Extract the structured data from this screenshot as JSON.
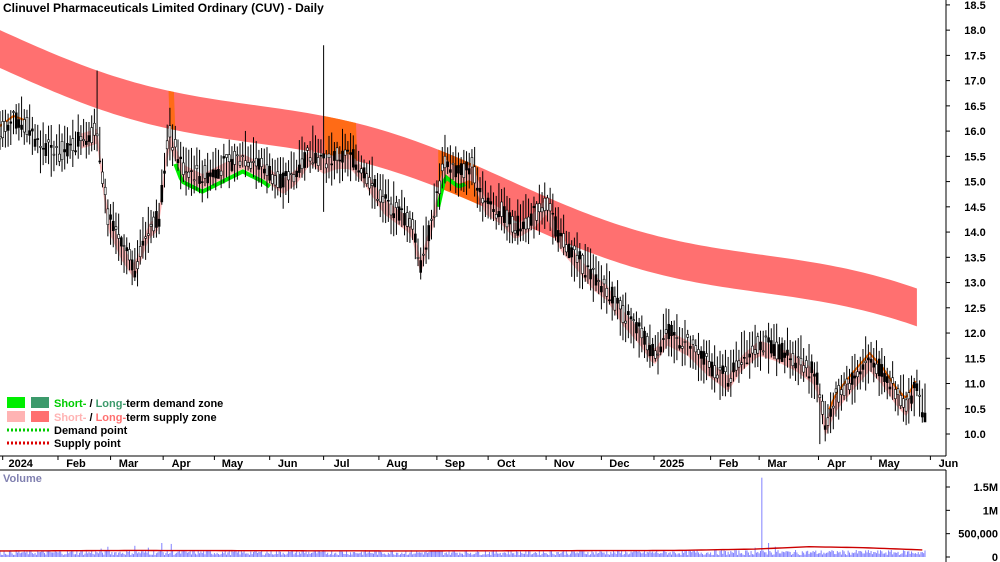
{
  "title": "Clinuvel Pharmaceuticals Limited Ordinary (CUV) - Daily",
  "volume_label": "Volume",
  "legend": {
    "demand_zone": {
      "short": "Short-",
      "sep": " / ",
      "long": "Long-",
      "rest": "term demand zone"
    },
    "supply_zone": {
      "short": "Short-",
      "sep": " / ",
      "long": "Long-",
      "rest": "term supply zone"
    },
    "demand_point": "Demand point",
    "supply_point": "Supply point"
  },
  "colors": {
    "short_demand": "#00ee00",
    "long_demand": "#3c9a6b",
    "short_supply": "#ffb3b3",
    "long_supply": "#ff7070",
    "short_supply_dark": "#ff6a00",
    "demand_point": "#00cc00",
    "supply_point": "#dd0000",
    "candle": "#000000",
    "volume_bar": "#8080ff",
    "volume_ma": "#cc0000",
    "volume_label": "#8080b0"
  },
  "chart_data": {
    "type": "candlestick",
    "price_axis": {
      "ticks": [
        "10.0",
        "10.5",
        "11.0",
        "11.5",
        "12.0",
        "12.5",
        "13.0",
        "13.5",
        "14.0",
        "14.5",
        "15.0",
        "15.5",
        "16.0",
        "16.5",
        "17.0",
        "17.5",
        "18.0",
        "18.5"
      ],
      "ylim": [
        9.5,
        18.6
      ]
    },
    "volume_axis": {
      "ticks": [
        "0",
        "500,000",
        "1M",
        "1.5M"
      ],
      "ylim": [
        0,
        1800000
      ]
    },
    "x_axis_labels": [
      "2024",
      "Feb",
      "Mar",
      "Apr",
      "May",
      "Jun",
      "Jul",
      "Aug",
      "Sep",
      "Oct",
      "Nov",
      "Dec",
      "2025",
      "Feb",
      "Mar",
      "Apr",
      "May",
      "Jun"
    ],
    "x_axis_label_days": [
      2,
      43,
      82,
      121,
      159,
      200,
      240,
      281,
      324,
      362,
      405,
      446,
      485,
      527,
      563,
      607,
      646,
      690
    ],
    "day_range": [
      0,
      686
    ],
    "price_series": [
      [
        0,
        16.0
      ],
      [
        10,
        16.2
      ],
      [
        20,
        16.1
      ],
      [
        30,
        15.7
      ],
      [
        40,
        15.6
      ],
      [
        50,
        15.6
      ],
      [
        60,
        15.9
      ],
      [
        72,
        16.0
      ],
      [
        80,
        14.3
      ],
      [
        90,
        13.7
      ],
      [
        100,
        13.3
      ],
      [
        110,
        14.1
      ],
      [
        118,
        14.3
      ],
      [
        125,
        16.0
      ],
      [
        135,
        15.3
      ],
      [
        150,
        15.1
      ],
      [
        165,
        15.3
      ],
      [
        180,
        15.5
      ],
      [
        195,
        15.3
      ],
      [
        210,
        15.0
      ],
      [
        220,
        15.2
      ],
      [
        230,
        15.6
      ],
      [
        240,
        15.4
      ],
      [
        250,
        15.5
      ],
      [
        260,
        15.5
      ],
      [
        270,
        15.2
      ],
      [
        285,
        14.6
      ],
      [
        295,
        14.4
      ],
      [
        305,
        14.2
      ],
      [
        312,
        13.4
      ],
      [
        320,
        14.2
      ],
      [
        330,
        15.4
      ],
      [
        340,
        15.2
      ],
      [
        350,
        15.3
      ],
      [
        360,
        14.6
      ],
      [
        372,
        14.4
      ],
      [
        382,
        14.1
      ],
      [
        395,
        14.3
      ],
      [
        405,
        14.6
      ],
      [
        415,
        13.9
      ],
      [
        428,
        13.5
      ],
      [
        440,
        13.1
      ],
      [
        450,
        12.9
      ],
      [
        462,
        12.4
      ],
      [
        475,
        12.0
      ],
      [
        485,
        11.6
      ],
      [
        495,
        12.0
      ],
      [
        510,
        11.8
      ],
      [
        525,
        11.4
      ],
      [
        540,
        11.1
      ],
      [
        550,
        11.5
      ],
      [
        563,
        11.8
      ],
      [
        575,
        11.7
      ],
      [
        590,
        11.5
      ],
      [
        605,
        11.2
      ],
      [
        612,
        10.2
      ],
      [
        620,
        10.7
      ],
      [
        632,
        11.1
      ],
      [
        645,
        11.5
      ],
      [
        655,
        11.2
      ],
      [
        665,
        10.8
      ],
      [
        672,
        10.6
      ],
      [
        680,
        11.0
      ],
      [
        686,
        10.3
      ]
    ],
    "volume_ma": [
      [
        0,
        130000
      ],
      [
        100,
        140000
      ],
      [
        200,
        135000
      ],
      [
        300,
        130000
      ],
      [
        400,
        135000
      ],
      [
        500,
        140000
      ],
      [
        560,
        170000
      ],
      [
        600,
        220000
      ],
      [
        640,
        200000
      ],
      [
        686,
        150000
      ]
    ],
    "volume_spikes": [
      [
        75,
        180000
      ],
      [
        80,
        220000
      ],
      [
        100,
        240000
      ],
      [
        110,
        200000
      ],
      [
        120,
        300000
      ],
      [
        127,
        280000
      ],
      [
        240,
        150000
      ],
      [
        325,
        150000
      ],
      [
        470,
        120000
      ],
      [
        560,
        200000
      ],
      [
        565,
        1700000
      ],
      [
        570,
        300000
      ],
      [
        575,
        220000
      ]
    ]
  }
}
